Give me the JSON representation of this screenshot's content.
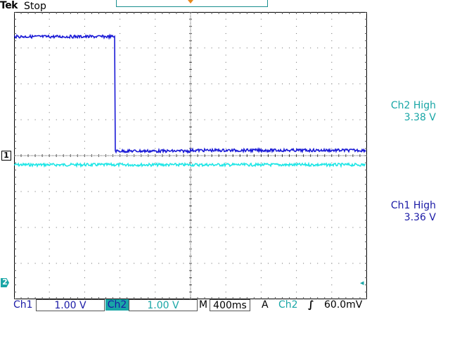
{
  "header": {
    "brand": "Tek",
    "status": "Stop"
  },
  "channels": {
    "ch1": {
      "marker": "1",
      "label": "Ch1",
      "scale": "1.00 V",
      "color": "#1a1aa6",
      "measurement": {
        "name": "Ch1 High",
        "value": "3.36 V"
      }
    },
    "ch2": {
      "marker": "2",
      "label": "Ch2",
      "scale": "1.00 V",
      "color": "#19a6a6",
      "measurement": {
        "name": "Ch2 High",
        "value": "3.38 V"
      }
    }
  },
  "timebase": {
    "label": "M",
    "value": "400ms"
  },
  "trigger": {
    "mode": "A",
    "source": "Ch2",
    "slope_symbol": "∫",
    "level": "60.0mV",
    "color": "#e88a1e"
  },
  "icons": {
    "trigger_position": "trigger-position-marker",
    "trigger_level": "trigger-level-arrow"
  }
}
